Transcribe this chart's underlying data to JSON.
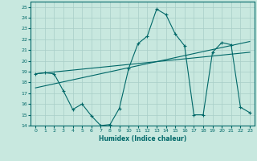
{
  "xlabel": "Humidex (Indice chaleur)",
  "ylabel": "",
  "xlim": [
    -0.5,
    23.5
  ],
  "ylim": [
    14,
    25.5
  ],
  "yticks": [
    14,
    15,
    16,
    17,
    18,
    19,
    20,
    21,
    22,
    23,
    24,
    25
  ],
  "xticks": [
    0,
    1,
    2,
    3,
    4,
    5,
    6,
    7,
    8,
    9,
    10,
    11,
    12,
    13,
    14,
    15,
    16,
    17,
    18,
    19,
    20,
    21,
    22,
    23
  ],
  "bg_color": "#c8e8df",
  "grid_color": "#a8cec8",
  "line_color": "#006868",
  "line1_x": [
    0,
    1,
    2,
    3,
    4,
    5,
    6,
    7,
    8,
    9,
    10,
    11,
    12,
    13,
    14,
    15,
    16,
    17,
    18,
    19,
    20,
    21,
    22,
    23
  ],
  "line1_y": [
    18.8,
    18.9,
    18.8,
    17.2,
    15.5,
    16.0,
    14.9,
    14.0,
    14.1,
    15.6,
    19.3,
    21.6,
    22.3,
    24.8,
    24.3,
    22.5,
    21.4,
    15.0,
    15.0,
    20.8,
    21.7,
    21.5,
    15.7,
    15.2
  ],
  "line2_x": [
    0,
    23
  ],
  "line2_y": [
    17.5,
    21.8
  ],
  "line3_x": [
    0,
    23
  ],
  "line3_y": [
    18.8,
    20.8
  ]
}
